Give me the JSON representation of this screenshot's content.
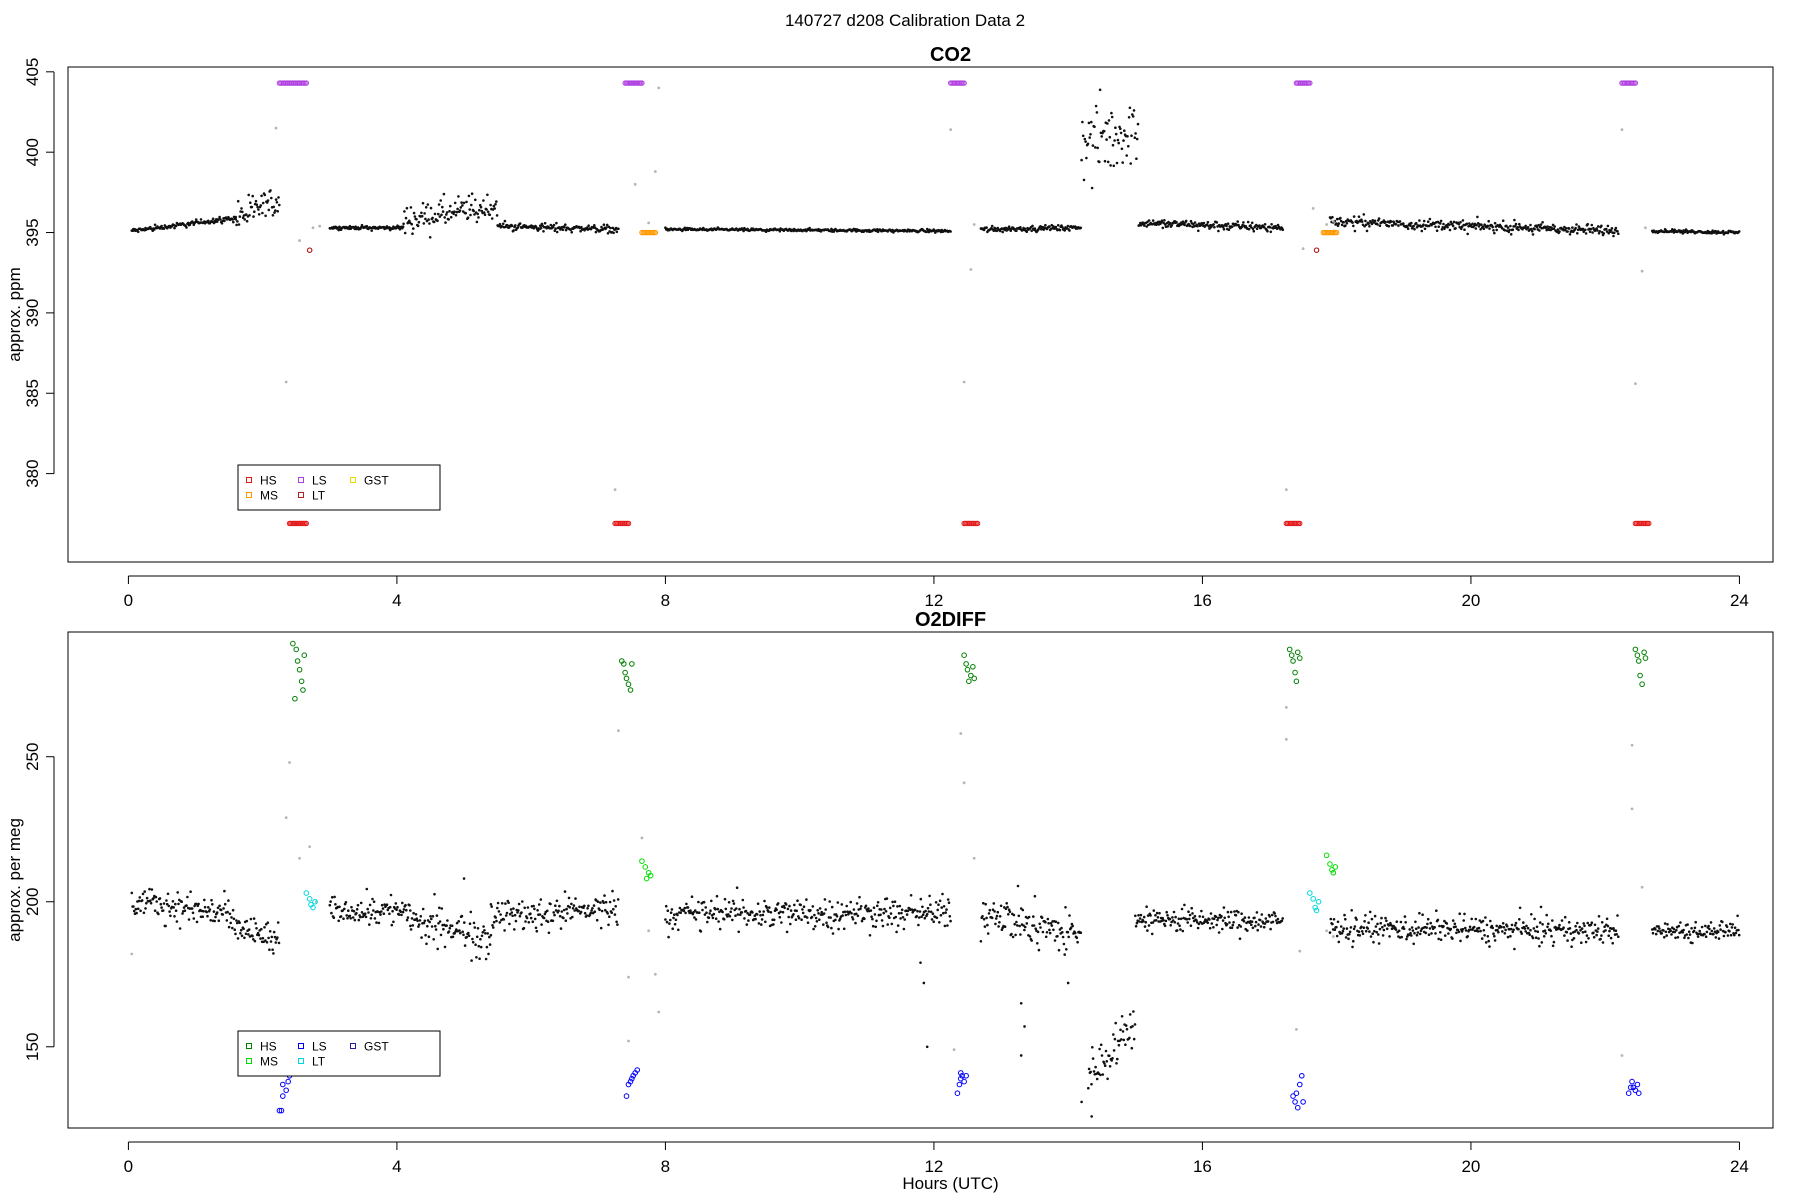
{
  "figure": {
    "title": "140727   d208   Calibration Data 2"
  },
  "chart_data": [
    {
      "type": "scatter",
      "title": "CO2",
      "xlabel": "",
      "ylabel": "approx. ppm",
      "xlim": [
        -0.9,
        24.5
      ],
      "ylim": [
        374.5,
        405.3
      ],
      "xticks": [
        0,
        4,
        8,
        12,
        16,
        20,
        24
      ],
      "yticks": [
        380,
        385,
        390,
        395,
        400,
        405
      ],
      "grid": false,
      "legend": {
        "placement": "bottom-left",
        "entries": [
          {
            "label": "HS",
            "color": "#e31a1c"
          },
          {
            "label": "MS",
            "color": "#ff9900"
          },
          {
            "label": "LS",
            "color": "#b040e0"
          },
          {
            "label": "LT",
            "color": "#b22222"
          },
          {
            "label": "GST",
            "color": "#e6d800"
          }
        ]
      },
      "colors": {
        "sample": "#111111",
        "flagged": "#b5b5b5"
      },
      "sample_segments": [
        {
          "x0": 0.05,
          "x1": 1.6,
          "base_start": 395.1,
          "base_end": 395.9,
          "noise": 0.15
        },
        {
          "x0": 1.6,
          "x1": 2.25,
          "base_start": 395.9,
          "base_end": 397.0,
          "noise": 0.9
        },
        {
          "x0": 3.0,
          "x1": 4.1,
          "base_start": 395.3,
          "base_end": 395.3,
          "noise": 0.1
        },
        {
          "x0": 4.1,
          "x1": 5.5,
          "base_start": 395.8,
          "base_end": 396.6,
          "noise": 0.8
        },
        {
          "x0": 5.5,
          "x1": 7.3,
          "base_start": 395.4,
          "base_end": 395.2,
          "noise": 0.2
        },
        {
          "x0": 8.0,
          "x1": 12.25,
          "base_start": 395.2,
          "base_end": 395.1,
          "noise": 0.08
        },
        {
          "x0": 12.7,
          "x1": 14.2,
          "base_start": 395.2,
          "base_end": 395.3,
          "noise": 0.15
        },
        {
          "x0": 14.2,
          "x1": 15.05,
          "base_start": 400.5,
          "base_end": 401.5,
          "noise": 2.2
        },
        {
          "x0": 15.05,
          "x1": 17.2,
          "base_start": 395.6,
          "base_end": 395.3,
          "noise": 0.25
        },
        {
          "x0": 17.9,
          "x1": 22.2,
          "base_start": 395.7,
          "base_end": 395.1,
          "noise": 0.3
        },
        {
          "x0": 22.7,
          "x1": 24.0,
          "base_start": 395.1,
          "base_end": 395.0,
          "noise": 0.1
        }
      ],
      "flagged_points": [
        {
          "x": 2.2,
          "y": 401.5
        },
        {
          "x": 2.35,
          "y": 385.7
        },
        {
          "x": 2.55,
          "y": 394.5
        },
        {
          "x": 2.75,
          "y": 395.3
        },
        {
          "x": 2.85,
          "y": 395.4
        },
        {
          "x": 7.25,
          "y": 379.0
        },
        {
          "x": 7.55,
          "y": 398.0
        },
        {
          "x": 7.75,
          "y": 395.6
        },
        {
          "x": 7.85,
          "y": 398.8
        },
        {
          "x": 7.9,
          "y": 404.0
        },
        {
          "x": 12.25,
          "y": 401.4
        },
        {
          "x": 12.45,
          "y": 385.7
        },
        {
          "x": 12.55,
          "y": 392.7
        },
        {
          "x": 12.6,
          "y": 395.5
        },
        {
          "x": 17.25,
          "y": 379.0
        },
        {
          "x": 17.5,
          "y": 394.0
        },
        {
          "x": 17.65,
          "y": 396.5
        },
        {
          "x": 17.85,
          "y": 395.5
        },
        {
          "x": 17.95,
          "y": 395.7
        },
        {
          "x": 22.25,
          "y": 401.4
        },
        {
          "x": 22.45,
          "y": 385.6
        },
        {
          "x": 22.55,
          "y": 392.6
        },
        {
          "x": 22.6,
          "y": 395.3
        }
      ],
      "cal_runs": [
        {
          "label": "LS",
          "color": "#b040e0",
          "x0": 2.25,
          "x1": 2.65,
          "y": 404.3
        },
        {
          "label": "LS",
          "color": "#b040e0",
          "x0": 7.4,
          "x1": 7.65,
          "y": 404.3
        },
        {
          "label": "LS",
          "color": "#b040e0",
          "x0": 12.25,
          "x1": 12.45,
          "y": 404.3
        },
        {
          "label": "LS",
          "color": "#b040e0",
          "x0": 17.4,
          "x1": 17.6,
          "y": 404.3
        },
        {
          "label": "LS",
          "color": "#b040e0",
          "x0": 22.25,
          "x1": 22.45,
          "y": 404.3
        },
        {
          "label": "HS",
          "color": "#e31a1c",
          "x0": 2.4,
          "x1": 2.65,
          "y": 376.9
        },
        {
          "label": "HS",
          "color": "#e31a1c",
          "x0": 7.25,
          "x1": 7.45,
          "y": 376.9
        },
        {
          "label": "HS",
          "color": "#e31a1c",
          "x0": 12.45,
          "x1": 12.65,
          "y": 376.9
        },
        {
          "label": "HS",
          "color": "#e31a1c",
          "x0": 17.25,
          "x1": 17.45,
          "y": 376.9
        },
        {
          "label": "HS",
          "color": "#e31a1c",
          "x0": 22.45,
          "x1": 22.65,
          "y": 376.9
        },
        {
          "label": "MS",
          "color": "#ff9900",
          "x0": 7.65,
          "x1": 7.85,
          "y": 395.0
        },
        {
          "label": "MS",
          "color": "#ff9900",
          "x0": 17.8,
          "x1": 18.0,
          "y": 395.0
        },
        {
          "label": "LT",
          "color": "#b22222",
          "x0": 2.7,
          "x1": 2.7,
          "y": 393.9
        },
        {
          "label": "LT",
          "color": "#b22222",
          "x0": 17.7,
          "x1": 17.7,
          "y": 393.9
        }
      ]
    },
    {
      "type": "scatter",
      "title": "O2DIFF",
      "xlabel": "Hours (UTC)",
      "ylabel": "approx. per meg",
      "xlim": [
        -0.9,
        24.5
      ],
      "ylim": [
        122,
        293
      ],
      "xticks": [
        0,
        4,
        8,
        12,
        16,
        20,
        24
      ],
      "yticks": [
        150,
        200,
        250
      ],
      "grid": false,
      "legend": {
        "placement": "bottom-left",
        "entries": [
          {
            "label": "HS",
            "color": "#008000"
          },
          {
            "label": "MS",
            "color": "#00dd00"
          },
          {
            "label": "LS",
            "color": "#0000ff"
          },
          {
            "label": "LT",
            "color": "#00d8e0"
          },
          {
            "label": "GST",
            "color": "#1f1fa0"
          }
        ]
      },
      "colors": {
        "sample": "#111111",
        "flagged": "#b5b5b5"
      },
      "sample_segments": [
        {
          "x0": 0.05,
          "x1": 1.5,
          "base_start": 200,
          "base_end": 196,
          "noise": 5
        },
        {
          "x0": 1.5,
          "x1": 2.25,
          "base_start": 192,
          "base_end": 186,
          "noise": 5
        },
        {
          "x0": 3.0,
          "x1": 4.2,
          "base_start": 197,
          "base_end": 197,
          "noise": 4
        },
        {
          "x0": 4.2,
          "x1": 5.4,
          "base_start": 193,
          "base_end": 188,
          "noise": 6
        },
        {
          "x0": 5.4,
          "x1": 7.3,
          "base_start": 195,
          "base_end": 198,
          "noise": 5
        },
        {
          "x0": 8.0,
          "x1": 12.25,
          "base_start": 196,
          "base_end": 196,
          "noise": 5
        },
        {
          "x0": 12.7,
          "x1": 14.2,
          "base_start": 197,
          "base_end": 188,
          "noise": 7
        },
        {
          "x0": 14.3,
          "x1": 15.0,
          "base_start": 140,
          "base_end": 158,
          "noise": 7
        },
        {
          "x0": 15.0,
          "x1": 17.2,
          "base_start": 194,
          "base_end": 193,
          "noise": 4
        },
        {
          "x0": 17.9,
          "x1": 22.2,
          "base_start": 191,
          "base_end": 190,
          "noise": 4
        },
        {
          "x0": 22.7,
          "x1": 24.0,
          "base_start": 190,
          "base_end": 190,
          "noise": 3
        }
      ],
      "extra_points": [
        {
          "x": 11.8,
          "y": 179
        },
        {
          "x": 11.85,
          "y": 172
        },
        {
          "x": 11.9,
          "y": 150
        },
        {
          "x": 13.3,
          "y": 165
        },
        {
          "x": 13.35,
          "y": 157
        },
        {
          "x": 13.3,
          "y": 147
        },
        {
          "x": 14.0,
          "y": 172
        },
        {
          "x": 14.2,
          "y": 131
        },
        {
          "x": 14.35,
          "y": 126
        },
        {
          "x": 5.0,
          "y": 208
        }
      ],
      "flagged_points": [
        {
          "x": 0.05,
          "y": 182
        },
        {
          "x": 2.35,
          "y": 229
        },
        {
          "x": 2.4,
          "y": 248
        },
        {
          "x": 2.55,
          "y": 215
        },
        {
          "x": 2.7,
          "y": 219
        },
        {
          "x": 2.8,
          "y": 200
        },
        {
          "x": 7.3,
          "y": 259
        },
        {
          "x": 7.45,
          "y": 174
        },
        {
          "x": 7.45,
          "y": 152
        },
        {
          "x": 7.65,
          "y": 222
        },
        {
          "x": 7.75,
          "y": 190
        },
        {
          "x": 7.85,
          "y": 175
        },
        {
          "x": 7.9,
          "y": 162
        },
        {
          "x": 12.3,
          "y": 149
        },
        {
          "x": 12.4,
          "y": 258
        },
        {
          "x": 12.45,
          "y": 241
        },
        {
          "x": 12.6,
          "y": 215
        },
        {
          "x": 17.25,
          "y": 267
        },
        {
          "x": 17.25,
          "y": 256
        },
        {
          "x": 17.4,
          "y": 156
        },
        {
          "x": 17.45,
          "y": 183
        },
        {
          "x": 17.85,
          "y": 190
        },
        {
          "x": 17.95,
          "y": 188
        },
        {
          "x": 22.25,
          "y": 147
        },
        {
          "x": 22.4,
          "y": 254
        },
        {
          "x": 22.4,
          "y": 232
        },
        {
          "x": 22.55,
          "y": 205
        }
      ],
      "cal_points": [
        {
          "label": "HS",
          "color": "#008000",
          "x": [
            2.45,
            2.5,
            2.52,
            2.55,
            2.58,
            2.6,
            2.62,
            2.48
          ],
          "y": [
            289,
            287,
            283,
            280,
            276,
            273,
            285,
            270
          ]
        },
        {
          "label": "HS",
          "color": "#008000",
          "x": [
            7.35,
            7.38,
            7.4,
            7.42,
            7.45,
            7.48,
            7.5
          ],
          "y": [
            283,
            282,
            279,
            277,
            275,
            273,
            282
          ]
        },
        {
          "label": "HS",
          "color": "#008000",
          "x": [
            12.45,
            12.48,
            12.5,
            12.52,
            12.55,
            12.58,
            12.6
          ],
          "y": [
            285,
            282,
            280,
            276,
            278,
            281,
            277
          ]
        },
        {
          "label": "HS",
          "color": "#008000",
          "x": [
            17.3,
            17.33,
            17.35,
            17.38,
            17.4,
            17.42,
            17.45
          ],
          "y": [
            287,
            285,
            283,
            279,
            276,
            286,
            284
          ]
        },
        {
          "label": "HS",
          "color": "#008000",
          "x": [
            22.45,
            22.48,
            22.5,
            22.52,
            22.55,
            22.58,
            22.6
          ],
          "y": [
            287,
            285,
            283,
            278,
            275,
            286,
            284
          ]
        },
        {
          "label": "MS",
          "color": "#00dd00",
          "x": [
            7.65,
            7.7,
            7.72,
            7.75,
            7.78
          ],
          "y": [
            214,
            212,
            208,
            210,
            209
          ]
        },
        {
          "label": "MS",
          "color": "#00dd00",
          "x": [
            17.85,
            17.9,
            17.93,
            17.95,
            17.98
          ],
          "y": [
            216,
            213,
            211,
            210,
            212
          ]
        },
        {
          "label": "LT",
          "color": "#00d8e0",
          "x": [
            2.65,
            2.7,
            2.72,
            2.75,
            2.78
          ],
          "y": [
            203,
            201,
            199,
            198,
            200
          ]
        },
        {
          "label": "LT",
          "color": "#00d8e0",
          "x": [
            17.6,
            17.65,
            17.68,
            17.7,
            17.73
          ],
          "y": [
            203,
            201,
            198,
            197,
            200
          ]
        },
        {
          "label": "LS",
          "color": "#0000ff",
          "x": [
            2.25,
            2.28,
            2.3,
            2.35,
            2.38,
            2.4,
            2.3
          ],
          "y": [
            128,
            128,
            133,
            135,
            138,
            140,
            137
          ]
        },
        {
          "label": "LS",
          "color": "#0000ff",
          "x": [
            7.42,
            7.45,
            7.48,
            7.5,
            7.52,
            7.55,
            7.58
          ],
          "y": [
            133,
            137,
            138,
            139,
            140,
            141,
            142
          ]
        },
        {
          "label": "LS",
          "color": "#0000ff",
          "x": [
            12.35,
            12.38,
            12.4,
            12.42,
            12.45,
            12.48,
            12.4
          ],
          "y": [
            134,
            137,
            139,
            140,
            138,
            140,
            141
          ]
        },
        {
          "label": "LS",
          "color": "#0000ff",
          "x": [
            17.35,
            17.38,
            17.4,
            17.42,
            17.45,
            17.48,
            17.5
          ],
          "y": [
            133,
            131,
            134,
            129,
            137,
            140,
            131
          ]
        },
        {
          "label": "LS",
          "color": "#0000ff",
          "x": [
            22.35,
            22.38,
            22.4,
            22.42,
            22.45,
            22.48,
            22.5
          ],
          "y": [
            134,
            136,
            138,
            136,
            135,
            137,
            134
          ]
        }
      ]
    }
  ]
}
